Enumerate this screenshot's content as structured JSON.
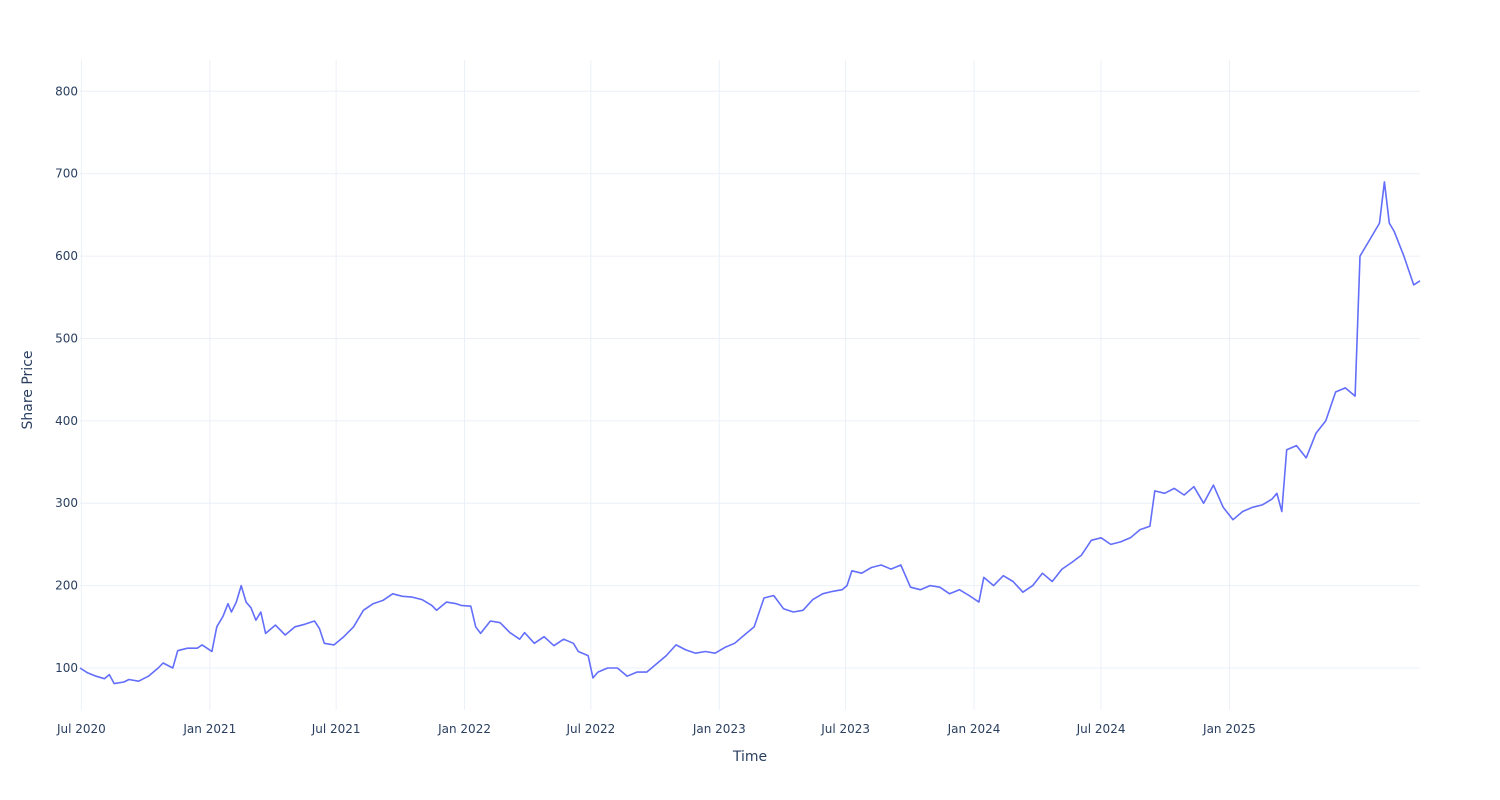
{
  "chart_data": {
    "type": "line",
    "title": "",
    "xlabel": "Time",
    "ylabel": "Share Price",
    "x_ticks": [
      {
        "date": "2020-07-01",
        "label": "Jul 2020"
      },
      {
        "date": "2021-01-01",
        "label": "Jan 2021"
      },
      {
        "date": "2021-07-01",
        "label": "Jul 2021"
      },
      {
        "date": "2022-01-01",
        "label": "Jan 2022"
      },
      {
        "date": "2022-07-01",
        "label": "Jul 2022"
      },
      {
        "date": "2023-01-01",
        "label": "Jan 2023"
      },
      {
        "date": "2023-07-01",
        "label": "Jul 2023"
      },
      {
        "date": "2024-01-01",
        "label": "Jan 2024"
      },
      {
        "date": "2024-07-01",
        "label": "Jul 2024"
      },
      {
        "date": "2025-01-01",
        "label": "Jan 2025"
      }
    ],
    "y_ticks": [
      100,
      200,
      300,
      400,
      500,
      600,
      700,
      800
    ],
    "xlim": [
      "2020-06-29",
      "2025-10-01"
    ],
    "ylim": [
      49,
      838
    ],
    "grid": true,
    "legend": false,
    "series": [
      {
        "color": "#636efa",
        "points": [
          [
            "2020-06-29",
            100
          ],
          [
            "2020-07-10",
            94
          ],
          [
            "2020-07-22",
            90
          ],
          [
            "2020-08-03",
            87
          ],
          [
            "2020-08-10",
            92
          ],
          [
            "2020-08-17",
            81
          ],
          [
            "2020-08-31",
            83
          ],
          [
            "2020-09-07",
            86
          ],
          [
            "2020-09-21",
            84
          ],
          [
            "2020-10-05",
            90
          ],
          [
            "2020-10-19",
            100
          ],
          [
            "2020-10-26",
            106
          ],
          [
            "2020-11-09",
            100
          ],
          [
            "2020-11-16",
            121
          ],
          [
            "2020-11-30",
            124
          ],
          [
            "2020-12-14",
            124
          ],
          [
            "2020-12-21",
            128
          ],
          [
            "2020-12-28",
            124
          ],
          [
            "2021-01-04",
            120
          ],
          [
            "2021-01-11",
            150
          ],
          [
            "2021-01-20",
            163
          ],
          [
            "2021-01-27",
            178
          ],
          [
            "2021-02-01",
            168
          ],
          [
            "2021-02-08",
            180
          ],
          [
            "2021-02-15",
            200
          ],
          [
            "2021-02-22",
            180
          ],
          [
            "2021-03-01",
            173
          ],
          [
            "2021-03-08",
            158
          ],
          [
            "2021-03-15",
            168
          ],
          [
            "2021-03-22",
            142
          ],
          [
            "2021-04-05",
            152
          ],
          [
            "2021-04-19",
            140
          ],
          [
            "2021-05-03",
            150
          ],
          [
            "2021-05-17",
            153
          ],
          [
            "2021-05-31",
            157
          ],
          [
            "2021-06-07",
            148
          ],
          [
            "2021-06-14",
            130
          ],
          [
            "2021-06-28",
            128
          ],
          [
            "2021-07-12",
            138
          ],
          [
            "2021-07-26",
            150
          ],
          [
            "2021-08-09",
            170
          ],
          [
            "2021-08-23",
            178
          ],
          [
            "2021-09-06",
            182
          ],
          [
            "2021-09-20",
            190
          ],
          [
            "2021-10-04",
            187
          ],
          [
            "2021-10-18",
            186
          ],
          [
            "2021-11-01",
            183
          ],
          [
            "2021-11-15",
            176
          ],
          [
            "2021-11-22",
            170
          ],
          [
            "2021-12-06",
            180
          ],
          [
            "2021-12-20",
            178
          ],
          [
            "2021-12-27",
            176
          ],
          [
            "2022-01-10",
            175
          ],
          [
            "2022-01-17",
            150
          ],
          [
            "2022-01-24",
            142
          ],
          [
            "2022-02-07",
            157
          ],
          [
            "2022-02-21",
            155
          ],
          [
            "2022-03-07",
            143
          ],
          [
            "2022-03-21",
            135
          ],
          [
            "2022-03-28",
            143
          ],
          [
            "2022-04-11",
            130
          ],
          [
            "2022-04-25",
            138
          ],
          [
            "2022-05-09",
            127
          ],
          [
            "2022-05-23",
            135
          ],
          [
            "2022-06-06",
            130
          ],
          [
            "2022-06-13",
            120
          ],
          [
            "2022-06-27",
            115
          ],
          [
            "2022-07-04",
            88
          ],
          [
            "2022-07-11",
            95
          ],
          [
            "2022-07-25",
            100
          ],
          [
            "2022-08-08",
            100
          ],
          [
            "2022-08-22",
            90
          ],
          [
            "2022-09-05",
            95
          ],
          [
            "2022-09-19",
            95
          ],
          [
            "2022-10-03",
            105
          ],
          [
            "2022-10-17",
            115
          ],
          [
            "2022-10-31",
            128
          ],
          [
            "2022-11-14",
            122
          ],
          [
            "2022-11-28",
            118
          ],
          [
            "2022-12-12",
            120
          ],
          [
            "2022-12-26",
            118
          ],
          [
            "2023-01-09",
            125
          ],
          [
            "2023-01-23",
            130
          ],
          [
            "2023-02-06",
            140
          ],
          [
            "2023-02-20",
            150
          ],
          [
            "2023-03-06",
            185
          ],
          [
            "2023-03-20",
            188
          ],
          [
            "2023-04-03",
            172
          ],
          [
            "2023-04-17",
            168
          ],
          [
            "2023-05-01",
            170
          ],
          [
            "2023-05-15",
            183
          ],
          [
            "2023-05-29",
            190
          ],
          [
            "2023-06-12",
            193
          ],
          [
            "2023-06-26",
            195
          ],
          [
            "2023-07-03",
            200
          ],
          [
            "2023-07-10",
            218
          ],
          [
            "2023-07-24",
            215
          ],
          [
            "2023-08-07",
            222
          ],
          [
            "2023-08-21",
            225
          ],
          [
            "2023-09-04",
            220
          ],
          [
            "2023-09-18",
            225
          ],
          [
            "2023-10-02",
            198
          ],
          [
            "2023-10-16",
            195
          ],
          [
            "2023-10-30",
            200
          ],
          [
            "2023-11-13",
            198
          ],
          [
            "2023-11-27",
            190
          ],
          [
            "2023-12-11",
            195
          ],
          [
            "2023-12-25",
            188
          ],
          [
            "2024-01-08",
            180
          ],
          [
            "2024-01-15",
            210
          ],
          [
            "2024-01-29",
            200
          ],
          [
            "2024-02-12",
            212
          ],
          [
            "2024-02-26",
            205
          ],
          [
            "2024-03-11",
            192
          ],
          [
            "2024-03-25",
            200
          ],
          [
            "2024-04-08",
            215
          ],
          [
            "2024-04-22",
            205
          ],
          [
            "2024-05-06",
            220
          ],
          [
            "2024-05-20",
            228
          ],
          [
            "2024-06-03",
            237
          ],
          [
            "2024-06-17",
            255
          ],
          [
            "2024-07-01",
            258
          ],
          [
            "2024-07-15",
            250
          ],
          [
            "2024-07-29",
            253
          ],
          [
            "2024-08-12",
            258
          ],
          [
            "2024-08-26",
            268
          ],
          [
            "2024-09-09",
            272
          ],
          [
            "2024-09-16",
            315
          ],
          [
            "2024-09-30",
            312
          ],
          [
            "2024-10-14",
            318
          ],
          [
            "2024-10-28",
            310
          ],
          [
            "2024-11-11",
            320
          ],
          [
            "2024-11-25",
            300
          ],
          [
            "2024-12-09",
            322
          ],
          [
            "2024-12-23",
            295
          ],
          [
            "2025-01-06",
            280
          ],
          [
            "2025-01-20",
            290
          ],
          [
            "2025-02-03",
            295
          ],
          [
            "2025-02-17",
            298
          ],
          [
            "2025-03-03",
            305
          ],
          [
            "2025-03-10",
            312
          ],
          [
            "2025-03-17",
            290
          ],
          [
            "2025-03-24",
            365
          ],
          [
            "2025-04-07",
            370
          ],
          [
            "2025-04-21",
            355
          ],
          [
            "2025-05-05",
            385
          ],
          [
            "2025-05-19",
            400
          ],
          [
            "2025-06-02",
            435
          ],
          [
            "2025-06-16",
            440
          ],
          [
            "2025-06-30",
            430
          ],
          [
            "2025-07-07",
            600
          ],
          [
            "2025-07-21",
            620
          ],
          [
            "2025-08-04",
            640
          ],
          [
            "2025-08-11",
            690
          ],
          [
            "2025-08-18",
            640
          ],
          [
            "2025-08-25",
            630
          ],
          [
            "2025-09-08",
            600
          ],
          [
            "2025-09-22",
            565
          ],
          [
            "2025-10-01",
            570
          ]
        ]
      }
    ]
  }
}
